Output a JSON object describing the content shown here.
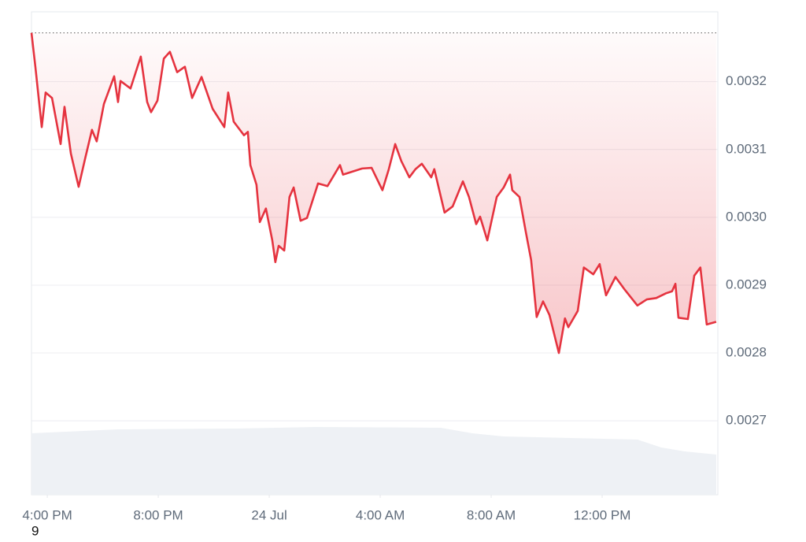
{
  "chart_data": {
    "type": "line",
    "footer_text": "9",
    "xlim": [
      15.43,
      40.17
    ],
    "xticks": [
      {
        "value": 16,
        "label": "4:00 PM"
      },
      {
        "value": 20,
        "label": "8:00 PM"
      },
      {
        "value": 24,
        "label": "24 Jul"
      },
      {
        "value": 28,
        "label": "4:00 AM"
      },
      {
        "value": 32,
        "label": "8:00 AM"
      },
      {
        "value": 36,
        "label": "12:00 PM"
      }
    ],
    "ylim": [
      0.002591,
      0.003303
    ],
    "yticks": [
      0.0032,
      0.0031,
      {
        "value": 0.003,
        "label": "0.0030"
      },
      0.0029,
      0.0028,
      0.0027
    ],
    "grid": true,
    "series": [
      {
        "color": "#e5333f",
        "x": [
          15.43,
          15.57,
          15.8,
          15.94,
          16.17,
          16.48,
          16.62,
          16.85,
          17.13,
          17.36,
          17.61,
          17.78,
          18.04,
          18.41,
          18.55,
          18.64,
          19.0,
          19.37,
          19.6,
          19.74,
          19.97,
          20.2,
          20.42,
          20.68,
          20.96,
          21.22,
          21.56,
          21.96,
          22.38,
          22.52,
          22.72,
          23.09,
          23.23,
          23.32,
          23.54,
          23.66,
          23.88,
          24.11,
          24.22,
          24.34,
          24.54,
          24.73,
          24.88,
          25.13,
          25.36,
          25.76,
          26.1,
          26.55,
          26.66,
          27.35,
          27.69,
          28.08,
          28.31,
          28.54,
          28.76,
          29.05,
          29.27,
          29.5,
          29.84,
          29.95,
          30.32,
          30.61,
          30.98,
          31.2,
          31.46,
          31.6,
          31.86,
          32.2,
          32.45,
          32.68,
          32.76,
          33.02,
          33.25,
          33.44,
          33.64,
          33.87,
          34.1,
          34.44,
          34.66,
          34.78,
          35.12,
          35.34,
          35.68,
          35.91,
          36.14,
          36.48,
          36.82,
          37.27,
          37.61,
          37.95,
          38.3,
          38.52,
          38.64,
          38.75,
          39.09,
          39.32,
          39.54,
          39.77,
          40.11
        ],
        "values": [
          0.003272,
          0.003222,
          0.003133,
          0.003184,
          0.003176,
          0.003108,
          0.003163,
          0.003094,
          0.003045,
          0.003086,
          0.003129,
          0.003112,
          0.003167,
          0.003208,
          0.00317,
          0.003201,
          0.00319,
          0.003237,
          0.00317,
          0.003155,
          0.003172,
          0.003234,
          0.003244,
          0.003214,
          0.003222,
          0.003176,
          0.003207,
          0.00316,
          0.003133,
          0.003184,
          0.003141,
          0.003121,
          0.003126,
          0.003077,
          0.003048,
          0.002993,
          0.003013,
          0.002966,
          0.002934,
          0.002958,
          0.002951,
          0.00303,
          0.003044,
          0.002995,
          0.002999,
          0.00305,
          0.003046,
          0.003077,
          0.003063,
          0.003072,
          0.003073,
          0.00304,
          0.003071,
          0.003108,
          0.003083,
          0.003059,
          0.003071,
          0.003079,
          0.003059,
          0.003071,
          0.003007,
          0.003016,
          0.003053,
          0.00303,
          0.00299,
          0.003001,
          0.002966,
          0.00303,
          0.003044,
          0.003063,
          0.00304,
          0.00303,
          0.002978,
          0.002937,
          0.002853,
          0.002876,
          0.002856,
          0.0028,
          0.002851,
          0.002838,
          0.002862,
          0.002926,
          0.002916,
          0.002931,
          0.002885,
          0.002912,
          0.002893,
          0.00287,
          0.002879,
          0.002881,
          0.002888,
          0.002891,
          0.002902,
          0.002852,
          0.00285,
          0.002914,
          0.002926,
          0.002842,
          0.002846
        ]
      }
    ]
  }
}
